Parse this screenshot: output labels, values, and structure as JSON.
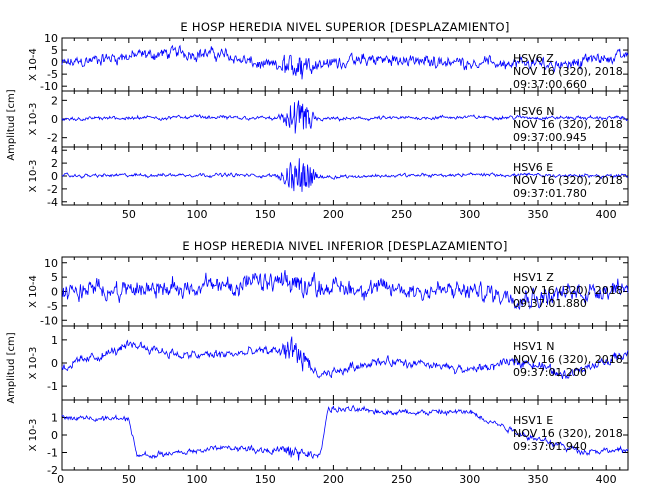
{
  "chart_data": [
    {
      "type": "line",
      "title": "E HOSP HEREDIA NIVEL SUPERIOR [DESPLAZAMIENTO]",
      "ylabel": "Amplitud [cm]",
      "xlim": [
        1,
        416
      ],
      "xticks": [
        50,
        100,
        150,
        200,
        250,
        300,
        350,
        400
      ],
      "line_color": "#0000ff",
      "panels": [
        {
          "name": "HSV6 Z",
          "date": "NOV 16 (320), 2018",
          "time": "09:37:00.660",
          "scale": "X 10-4",
          "ylim": [
            -12,
            10
          ],
          "yticks": [
            10,
            5,
            0,
            -5,
            -10
          ],
          "noise": 3.2,
          "burst": 4.5,
          "burst_start": 158,
          "burst_end": 185,
          "trend": [
            [
              1,
              -1
            ],
            [
              40,
              2
            ],
            [
              90,
              4
            ],
            [
              120,
              3
            ],
            [
              150,
              -2
            ],
            [
              180,
              -1
            ],
            [
              230,
              1
            ],
            [
              300,
              0
            ],
            [
              360,
              -1
            ],
            [
              416,
              3
            ]
          ]
        },
        {
          "name": "HSV6 N",
          "date": "NOV 16 (320), 2018",
          "time": "09:37:00.945",
          "scale": "X 10-3",
          "ylim": [
            -3,
            3
          ],
          "yticks": [
            2,
            0,
            -2
          ],
          "noise": 0.25,
          "burst": 1.6,
          "burst_start": 158,
          "burst_end": 190,
          "trend": [
            [
              1,
              0
            ],
            [
              100,
              0.2
            ],
            [
              200,
              0
            ],
            [
              300,
              0.2
            ],
            [
              416,
              0.1
            ]
          ]
        },
        {
          "name": "HSV6 E",
          "date": "NOV 16 (320), 2018",
          "time": "09:37:01.780",
          "scale": "X 10-3",
          "ylim": [
            -4.5,
            4.5
          ],
          "yticks": [
            4,
            2,
            0,
            -2,
            -4
          ],
          "noise": 0.35,
          "burst": 2.4,
          "burst_start": 158,
          "burst_end": 190,
          "trend": [
            [
              1,
              0
            ],
            [
              100,
              0.2
            ],
            [
              200,
              -0.1
            ],
            [
              300,
              0.2
            ],
            [
              416,
              0
            ]
          ]
        }
      ]
    },
    {
      "type": "line",
      "title": "E HOSP HEREDIA NIVEL INFERIOR [DESPLAZAMIENTO]",
      "ylabel": "Amplitud [cm]",
      "xlim": [
        1,
        416
      ],
      "xticks": [
        0,
        50,
        100,
        150,
        200,
        250,
        300,
        350,
        400
      ],
      "line_color": "#0000ff",
      "panels": [
        {
          "name": "HSV1 Z",
          "date": "NOV 16 (320), 2018",
          "time": "09:37:01.880",
          "scale": "X 10-4",
          "ylim": [
            -12,
            12
          ],
          "yticks": [
            10,
            5,
            0,
            -5,
            -10
          ],
          "noise": 4.2,
          "burst": 3.0,
          "burst_start": 158,
          "burst_end": 185,
          "trend": [
            [
              1,
              0
            ],
            [
              60,
              1
            ],
            [
              110,
              2
            ],
            [
              160,
              3
            ],
            [
              220,
              1
            ],
            [
              300,
              0
            ],
            [
              350,
              -2
            ],
            [
              416,
              2
            ]
          ]
        },
        {
          "name": "HSV1 N",
          "date": "NOV 16 (320), 2018",
          "time": "09:37:01.200",
          "scale": "X 10-3",
          "ylim": [
            -1.6,
            1.6
          ],
          "yticks": [
            1,
            0,
            -1
          ],
          "noise": 0.25,
          "burst": 0.5,
          "burst_start": 158,
          "burst_end": 185,
          "trend": [
            [
              1,
              -0.2
            ],
            [
              55,
              0.8
            ],
            [
              90,
              0.3
            ],
            [
              130,
              0.4
            ],
            [
              170,
              0.6
            ],
            [
              190,
              -0.6
            ],
            [
              230,
              0.1
            ],
            [
              300,
              -0.3
            ],
            [
              340,
              0.1
            ],
            [
              370,
              -0.5
            ],
            [
              416,
              0.4
            ]
          ]
        },
        {
          "name": "HSV1 E",
          "date": "NOV 16 (320), 2018",
          "time": "09:37:01.940",
          "scale": "X 10-3",
          "ylim": [
            -2,
            2
          ],
          "yticks": [
            1,
            0,
            -1,
            -2
          ],
          "noise": 0.22,
          "burst": 0.3,
          "burst_start": 158,
          "burst_end": 185,
          "trend": [
            [
              1,
              1
            ],
            [
              50,
              0.9
            ],
            [
              56,
              -1.2
            ],
            [
              80,
              -1.1
            ],
            [
              120,
              -0.7
            ],
            [
              160,
              -0.9
            ],
            [
              190,
              -1.2
            ],
            [
              196,
              1.5
            ],
            [
              250,
              1.3
            ],
            [
              300,
              1.3
            ],
            [
              340,
              0
            ],
            [
              380,
              -0.9
            ],
            [
              416,
              -0.9
            ]
          ]
        }
      ]
    }
  ]
}
